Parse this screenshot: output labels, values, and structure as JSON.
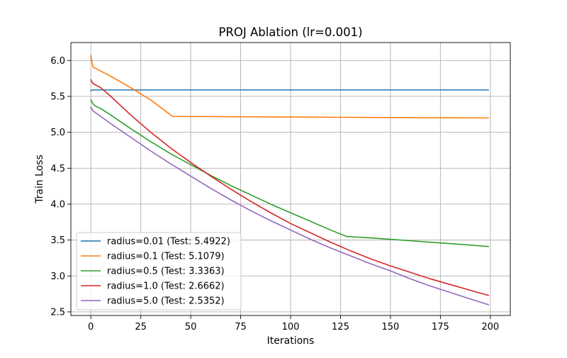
{
  "chart_data": {
    "type": "line",
    "title": "PROJ Ablation (lr=0.001)",
    "xlabel": "Iterations",
    "ylabel": "Train Loss",
    "xlim": [
      -10,
      210
    ],
    "ylim": [
      2.45,
      6.25
    ],
    "xticks": [
      0,
      25,
      50,
      75,
      100,
      125,
      150,
      175,
      200
    ],
    "yticks": [
      2.5,
      3.0,
      3.5,
      4.0,
      4.5,
      5.0,
      5.5,
      6.0
    ],
    "xtick_labels": [
      "0",
      "25",
      "50",
      "75",
      "100",
      "125",
      "150",
      "175",
      "200"
    ],
    "ytick_labels": [
      "2.5",
      "3.0",
      "3.5",
      "4.0",
      "4.5",
      "5.0",
      "5.5",
      "6.0"
    ],
    "grid": true,
    "legend_position": "lower-left",
    "series": [
      {
        "name": "radius=0.01 (Test: 5.4922)",
        "color": "#1f77b4",
        "x": [
          0,
          1,
          2,
          50,
          100,
          150,
          199
        ],
        "y": [
          5.58,
          5.59,
          5.59,
          5.59,
          5.59,
          5.59,
          5.59
        ]
      },
      {
        "name": "radius=0.1 (Test: 5.1079)",
        "color": "#ff7f0e",
        "x": [
          0,
          1,
          10,
          20,
          30,
          41,
          60,
          80,
          100,
          120,
          140,
          160,
          180,
          199
        ],
        "y": [
          6.07,
          5.91,
          5.78,
          5.62,
          5.45,
          5.22,
          5.219,
          5.216,
          5.213,
          5.21,
          5.207,
          5.204,
          5.202,
          5.2
        ]
      },
      {
        "name": "radius=0.5 (Test: 3.3363)",
        "color": "#2ca02c",
        "x": [
          0,
          1,
          2,
          5,
          10,
          20,
          30,
          40,
          50,
          60,
          70,
          80,
          90,
          100,
          110,
          120,
          128,
          140,
          150,
          160,
          170,
          180,
          190,
          199
        ],
        "y": [
          5.45,
          5.4,
          5.37,
          5.33,
          5.24,
          5.05,
          4.87,
          4.7,
          4.55,
          4.4,
          4.26,
          4.13,
          4.0,
          3.88,
          3.76,
          3.64,
          3.55,
          3.53,
          3.51,
          3.49,
          3.47,
          3.45,
          3.43,
          3.41
        ]
      },
      {
        "name": "radius=1.0 (Test: 2.6662)",
        "color": "#d62728",
        "x": [
          0,
          1,
          5,
          10,
          20,
          30,
          40,
          50,
          60,
          70,
          80,
          90,
          100,
          110,
          120,
          130,
          140,
          150,
          160,
          170,
          180,
          190,
          199
        ],
        "y": [
          5.73,
          5.68,
          5.62,
          5.5,
          5.24,
          5.0,
          4.78,
          4.58,
          4.39,
          4.21,
          4.04,
          3.88,
          3.73,
          3.6,
          3.47,
          3.35,
          3.24,
          3.14,
          3.05,
          2.96,
          2.88,
          2.8,
          2.73
        ]
      },
      {
        "name": "radius=5.0 (Test: 2.5352)",
        "color": "#9467bd",
        "x": [
          0,
          1,
          5,
          10,
          20,
          30,
          40,
          50,
          60,
          70,
          80,
          90,
          100,
          110,
          120,
          130,
          140,
          150,
          160,
          170,
          180,
          190,
          199
        ],
        "y": [
          5.35,
          5.3,
          5.22,
          5.12,
          4.93,
          4.74,
          4.56,
          4.39,
          4.22,
          4.06,
          3.91,
          3.77,
          3.64,
          3.51,
          3.39,
          3.28,
          3.17,
          3.07,
          2.96,
          2.86,
          2.77,
          2.68,
          2.6
        ]
      }
    ]
  }
}
